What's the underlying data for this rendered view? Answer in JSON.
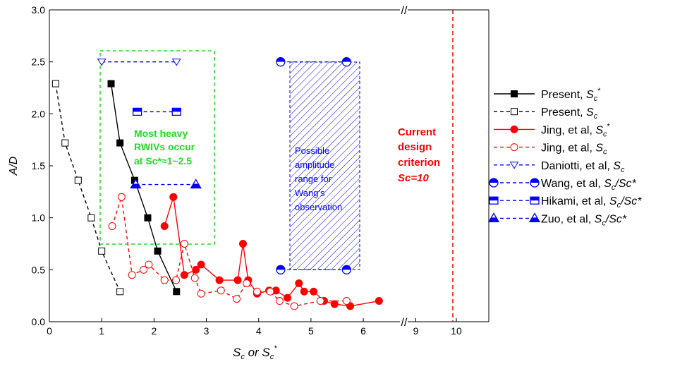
{
  "chart_data": {
    "type": "scatter",
    "xlabel": {
      "s1": "S",
      "sub1": "c",
      "mid": " or ",
      "s2": "S",
      "sub2": "c",
      "sup2": "*"
    },
    "ylabel": "A/D",
    "ylim": [
      0,
      3.0
    ],
    "xlim_main": [
      0,
      6.7
    ],
    "xlim_break": [
      8.8,
      10.8
    ],
    "x_ticks": [
      "0",
      "1",
      "2",
      "3",
      "4",
      "5",
      "6",
      "9",
      "10"
    ],
    "y_ticks": [
      "0.0",
      "0.5",
      "1.0",
      "1.5",
      "2.0",
      "2.5",
      "3.0"
    ],
    "grid": false,
    "legend_position": "right",
    "series": [
      {
        "name": "Present, Sc*",
        "color": "#000000",
        "marker": "square-filled",
        "line": "solid",
        "x": [
          1.18,
          1.35,
          1.63,
          1.88,
          2.07,
          2.43
        ],
        "y": [
          2.29,
          1.72,
          1.36,
          1.0,
          0.68,
          0.29
        ]
      },
      {
        "name": "Present, Sc",
        "color": "#000000",
        "marker": "square-open",
        "line": "dashed",
        "x": [
          0.12,
          0.3,
          0.55,
          0.8,
          1.0,
          1.35
        ],
        "y": [
          2.29,
          1.72,
          1.36,
          1.0,
          0.68,
          0.29
        ]
      },
      {
        "name": "Jing, et al, Sc*",
        "color": "#ff0000",
        "marker": "circle-filled",
        "line": "solid",
        "x": [
          2.2,
          2.37,
          2.58,
          2.8,
          2.9,
          3.25,
          3.6,
          3.7,
          3.8,
          3.97,
          4.2,
          4.33,
          4.55,
          4.77,
          4.87,
          5.05,
          5.25,
          5.45,
          5.75,
          6.3
        ],
        "y": [
          0.92,
          1.2,
          0.45,
          0.5,
          0.55,
          0.4,
          0.4,
          0.75,
          0.4,
          0.27,
          0.3,
          0.3,
          0.23,
          0.37,
          0.29,
          0.29,
          0.2,
          0.17,
          0.15,
          0.2
        ]
      },
      {
        "name": "Jing, et al, Sc",
        "color": "#ff0000",
        "marker": "circle-open",
        "line": "dashed",
        "x": [
          1.2,
          1.38,
          1.58,
          1.8,
          1.9,
          2.2,
          2.42,
          2.58,
          2.78,
          2.9,
          3.28,
          3.58,
          3.77,
          3.97,
          4.22,
          4.4,
          4.68,
          5.18,
          5.68
        ],
        "y": [
          0.92,
          1.2,
          0.45,
          0.5,
          0.55,
          0.4,
          0.4,
          0.75,
          0.42,
          0.27,
          0.3,
          0.22,
          0.37,
          0.29,
          0.29,
          0.2,
          0.15,
          0.2,
          0.2
        ]
      },
      {
        "name": "Daniotti, et al, Sc",
        "color": "#0000ff",
        "marker": "triangle-down-open",
        "line": "dashed",
        "x": [
          1.0,
          2.43
        ],
        "y": [
          2.5,
          2.5
        ]
      },
      {
        "name": "Wang, et al, Sc/Sc*",
        "color": "#0000ff",
        "marker": "circle-half",
        "line": "dashed",
        "x": [
          4.42,
          5.68,
          4.42,
          5.68
        ],
        "y": [
          2.5,
          2.5,
          0.5,
          0.5
        ]
      },
      {
        "name": "Hikami, et al, Sc/Sc*",
        "color": "#0000ff",
        "marker": "square-half",
        "line": "dashed",
        "x": [
          1.68,
          2.43
        ],
        "y": [
          2.02,
          2.02
        ]
      },
      {
        "name": "Zuo, et al, Sc/Sc*",
        "color": "#0000ff",
        "marker": "triangle-half",
        "line": "dashed",
        "x": [
          1.65,
          2.8
        ],
        "y": [
          1.32,
          1.32
        ]
      }
    ],
    "legend": [
      {
        "main": "Present, ",
        "s": "S",
        "sub": "c",
        "sup": "*",
        "rest": ""
      },
      {
        "main": "Present, ",
        "s": "S",
        "sub": "c",
        "sup": "",
        "rest": ""
      },
      {
        "main": "Jing, et al, ",
        "s": "S",
        "sub": "c",
        "sup": "*",
        "rest": ""
      },
      {
        "main": "Jing, et al, ",
        "s": "S",
        "sub": "c",
        "sup": "",
        "rest": ""
      },
      {
        "main": "Daniotti, et al, ",
        "s": "S",
        "sub": "c",
        "sup": "",
        "rest": ""
      },
      {
        "main": "Wang, et al, ",
        "s": "S",
        "sub": "c",
        "sup": "",
        "rest": "/Sc*"
      },
      {
        "main": "Hikami, et al, ",
        "s": "S",
        "sub": "c",
        "sup": "",
        "rest": "/Sc*"
      },
      {
        "main": "Zuo, et al, ",
        "s": "S",
        "sub": "c",
        "sup": "",
        "rest": "/Sc*"
      }
    ],
    "annotations": {
      "green_lines": [
        "Most heavy",
        "RWIVs occur",
        "at Sc*≈1~2.5"
      ],
      "blue_lines": [
        "Possible",
        "amplitude",
        "range for",
        "Wang's",
        "observation"
      ],
      "red_lines": [
        "Current",
        "design",
        "criterion",
        "Sc=10"
      ],
      "break_marks": "//"
    },
    "colors": {
      "green": "#22dd22",
      "blue": "#0000ff",
      "red": "#ff0000",
      "black": "#000000"
    }
  }
}
